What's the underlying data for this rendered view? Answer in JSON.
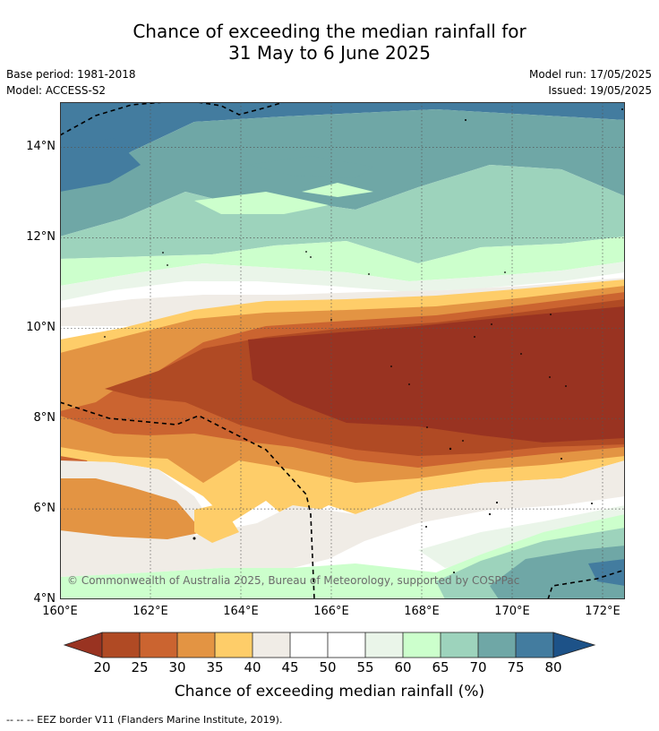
{
  "title": {
    "line1": "Chance of exceeding the median rainfall for",
    "line2": "31 May to 6 June 2025"
  },
  "meta": {
    "base_period": "Base period: 1981-2018",
    "model": "Model: ACCESS-S2",
    "model_run": "Model run: 17/05/2025",
    "issued": "Issued: 19/05/2025"
  },
  "map": {
    "lat_labels": [
      "14°N",
      "12°N",
      "10°N",
      "8°N",
      "6°N",
      "4°N"
    ],
    "lon_labels": [
      "160°E",
      "162°E",
      "164°E",
      "166°E",
      "168°E",
      "170°E",
      "172°E"
    ],
    "copyright": "© Commonwealth of Australia 2025, Bureau of Meteorology, supported by COSPPac",
    "lat_range": [
      4,
      15
    ],
    "lon_range": [
      160,
      172.5
    ]
  },
  "colorbar": {
    "title": "Chance of exceeding median rainfall (%)",
    "ticks": [
      "20",
      "25",
      "30",
      "35",
      "40",
      "45",
      "50",
      "55",
      "60",
      "65",
      "70",
      "75",
      "80"
    ],
    "colors": [
      "#993321",
      "#b04a24",
      "#cb6430",
      "#e39443",
      "#fecd69",
      "#f0ece6",
      "#ffffff",
      "#ffffff",
      "#eaf5e9",
      "#ccffcc",
      "#9dd3bc",
      "#6fa7a6",
      "#437c9f",
      "#1d5288"
    ]
  },
  "footnote": "-- -- -- EEZ border V11 (Flanders Marine Institute, 2019)."
}
